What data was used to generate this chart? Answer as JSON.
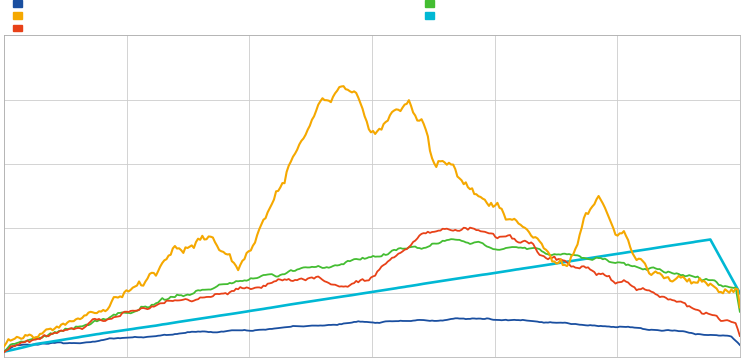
{
  "background_color": "#ffffff",
  "plot_bg_color": "#ffffff",
  "grid_color": "#cccccc",
  "legend_colors": {
    "blue": "#1a4fa0",
    "orange": "#f5a800",
    "red_orange": "#e84118",
    "green": "#44bd32",
    "cyan": "#00b8d4"
  },
  "n_points": 350,
  "line_width": 1.3,
  "ylim_max": 1.0,
  "figsize": [
    7.44,
    3.61
  ],
  "dpi": 100
}
